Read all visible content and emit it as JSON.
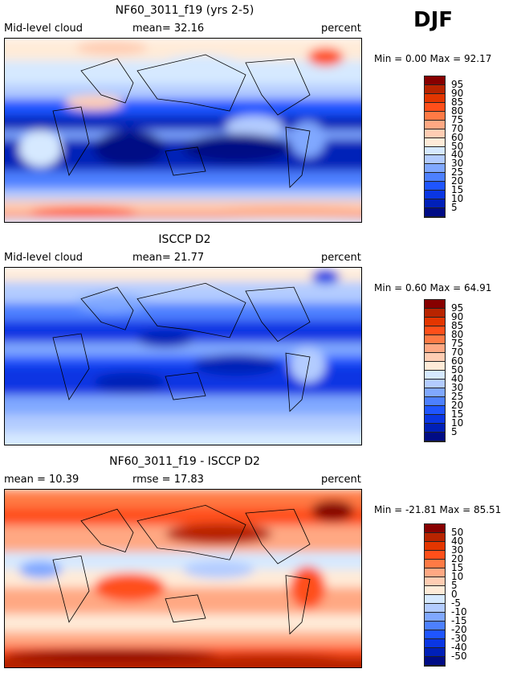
{
  "header": {
    "season": "DJF"
  },
  "colorbar_colors": [
    "#870000",
    "#b82400",
    "#e33600",
    "#ff4f1a",
    "#ff7a45",
    "#ffa883",
    "#ffcdb3",
    "#ffebd8",
    "#d6e9ff",
    "#b3ccff",
    "#80a8ff",
    "#4d80ff",
    "#1f55ff",
    "#0a36e3",
    "#0020b8",
    "#000c85"
  ],
  "panels": [
    {
      "title": "NF60_3011_f19 (yrs 2-5)",
      "left": "Mid-level cloud",
      "middle": "mean=  32.16",
      "right": "percent",
      "minmax": "Min =    0.00 Max =  92.17",
      "levels": [
        "95",
        "90",
        "85",
        "80",
        "75",
        "70",
        "60",
        "50",
        "40",
        "30",
        "25",
        "20",
        "15",
        "10",
        "5"
      ]
    },
    {
      "title": "ISCCP D2",
      "left": "Mid-level cloud",
      "middle": "mean=  21.77",
      "right": "percent",
      "minmax": "Min =    0.60 Max =  64.91",
      "levels": [
        "95",
        "90",
        "85",
        "80",
        "75",
        "70",
        "60",
        "50",
        "40",
        "30",
        "25",
        "20",
        "15",
        "10",
        "5"
      ]
    },
    {
      "title": "NF60_3011_f19 - ISCCP D2",
      "left": "mean =  10.39",
      "middle": "rmse =  17.83",
      "right": "percent",
      "minmax": "Min = -21.81 Max =  85.51",
      "levels": [
        "50",
        "40",
        "30",
        "20",
        "15",
        "10",
        "5",
        "0",
        "-5",
        "-10",
        "-15",
        "-20",
        "-30",
        "-40",
        "-50"
      ]
    }
  ]
}
